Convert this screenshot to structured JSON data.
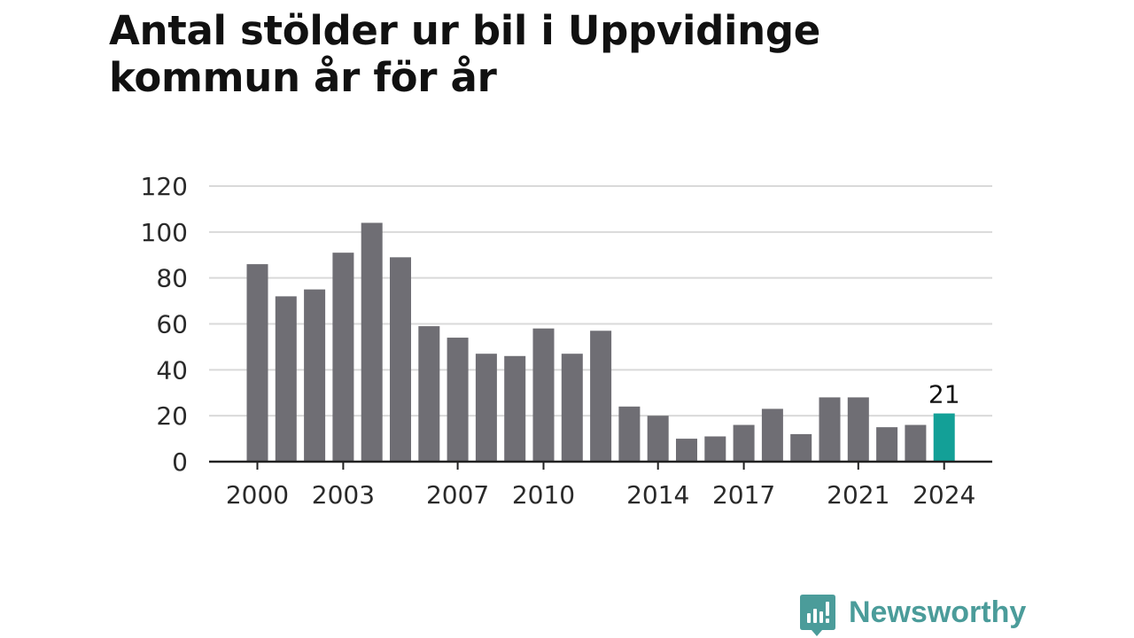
{
  "title": "Antal stölder ur bil i Uppvidinge kommun år för år",
  "brand": {
    "name": "Newsworthy",
    "icon": "newsworthy-logo-icon"
  },
  "colors": {
    "bar": "#6f6e74",
    "highlight": "#13a097",
    "grid": "#d9d9d9",
    "axis": "#222222",
    "text": "#2a2a2a",
    "brand": "#4b9c9a"
  },
  "chart_data": {
    "type": "bar",
    "x": [
      2000,
      2001,
      2002,
      2003,
      2004,
      2005,
      2006,
      2007,
      2008,
      2009,
      2010,
      2011,
      2012,
      2013,
      2014,
      2015,
      2016,
      2017,
      2018,
      2019,
      2020,
      2021,
      2022,
      2023,
      2024
    ],
    "values": [
      86,
      72,
      75,
      91,
      104,
      89,
      59,
      54,
      47,
      46,
      58,
      47,
      57,
      24,
      20,
      10,
      11,
      16,
      23,
      12,
      28,
      28,
      15,
      16,
      21
    ],
    "highlight_index": 24,
    "highlight_label": "21",
    "x_tick_labels": [
      "2000",
      "2003",
      "2007",
      "2010",
      "2014",
      "2017",
      "2021",
      "2024"
    ],
    "y_ticks": [
      0,
      20,
      40,
      60,
      80,
      100,
      120
    ],
    "ylim": [
      0,
      120
    ],
    "grid": true,
    "xlabel": "",
    "ylabel": ""
  }
}
